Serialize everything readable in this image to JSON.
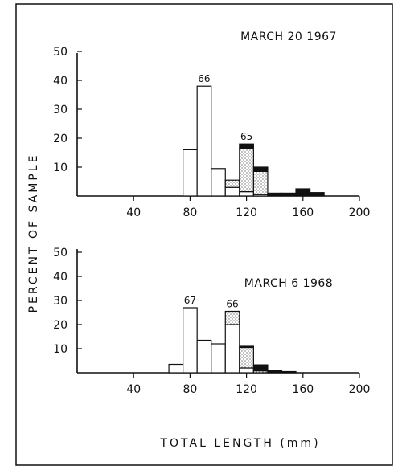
{
  "chart_data": [
    {
      "type": "bar",
      "title": "MARCH 20 1967",
      "xlabel": "TOTAL LENGTH (mm)",
      "ylabel": "PERCENT OF SAMPLE",
      "xlim": [
        0,
        200
      ],
      "ylim": [
        0,
        50
      ],
      "x_ticks": [
        40,
        80,
        120,
        160,
        200
      ],
      "y_ticks": [
        10,
        20,
        30,
        40,
        50
      ],
      "bin_width": 10,
      "bin_starts": [
        75,
        85,
        95,
        105,
        115,
        125,
        135,
        145,
        155,
        165
      ],
      "series": [
        {
          "fill": "open",
          "values": [
            16,
            38,
            9.5,
            3,
            1.5,
            0.5,
            0,
            0,
            0,
            0
          ]
        },
        {
          "fill": "dotted",
          "values": [
            0,
            0,
            0,
            2.5,
            15,
            8,
            0,
            0,
            0,
            0
          ]
        },
        {
          "fill": "solid",
          "values": [
            0,
            0,
            0,
            0,
            1.5,
            1.5,
            1,
            1,
            2.5,
            1.2
          ]
        }
      ],
      "annotations": [
        {
          "text": "66",
          "x": 90,
          "y": 38
        },
        {
          "text": "65",
          "x": 120,
          "y": 18
        }
      ]
    },
    {
      "type": "bar",
      "title": "MARCH 6 1968",
      "xlabel": "TOTAL LENGTH (mm)",
      "ylabel": "PERCENT OF SAMPLE",
      "xlim": [
        0,
        200
      ],
      "ylim": [
        0,
        50
      ],
      "x_ticks": [
        40,
        80,
        120,
        160,
        200
      ],
      "y_ticks": [
        10,
        20,
        30,
        40,
        50
      ],
      "bin_width": 10,
      "bin_starts": [
        65,
        75,
        85,
        95,
        105,
        115,
        125,
        135,
        145
      ],
      "series": [
        {
          "fill": "open",
          "values": [
            3.5,
            27,
            13.5,
            12,
            20,
            2,
            0,
            0,
            0
          ]
        },
        {
          "fill": "dotted",
          "values": [
            0,
            0,
            0,
            0,
            5.5,
            8.5,
            0.8,
            0,
            0
          ]
        },
        {
          "fill": "solid",
          "values": [
            0,
            0,
            0,
            0,
            0,
            0.5,
            2.5,
            1,
            0.5
          ]
        }
      ],
      "annotations": [
        {
          "text": "67",
          "x": 80,
          "y": 27
        },
        {
          "text": "66",
          "x": 110,
          "y": 25.5
        }
      ]
    }
  ],
  "colors": {
    "ink": "#111111",
    "paper": "#ffffff",
    "stipple": "#333333"
  }
}
